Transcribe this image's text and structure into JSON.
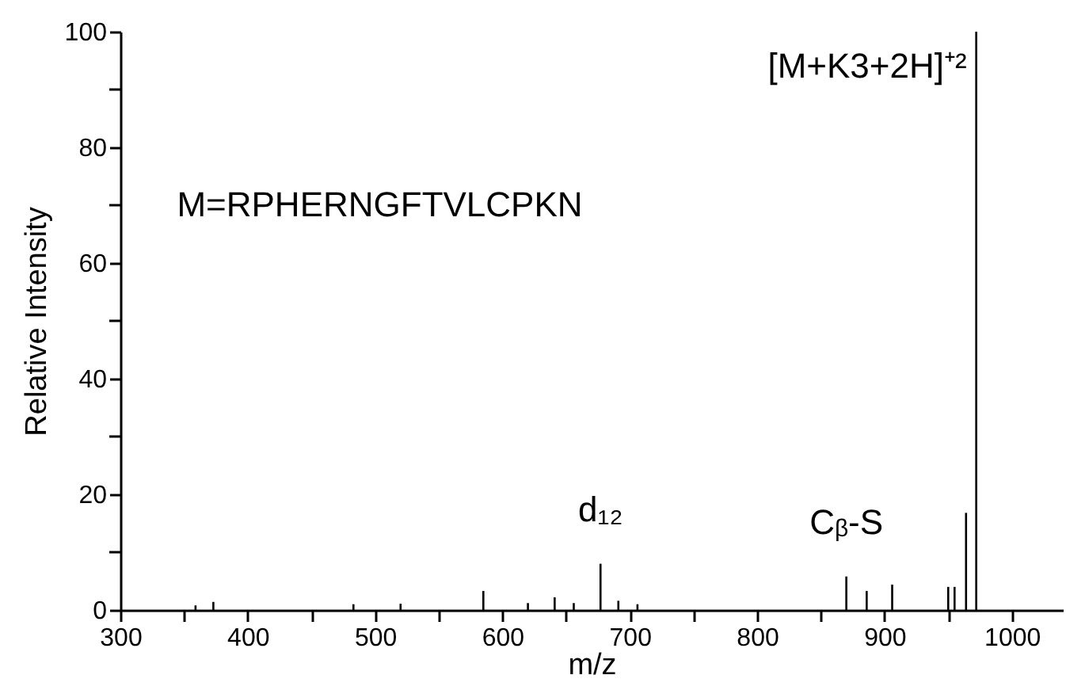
{
  "chart_data": {
    "type": "bar",
    "xlabel": "m/z",
    "ylabel": "Relative Intensity",
    "x": [
      359,
      373,
      483,
      520,
      585,
      620,
      641,
      656,
      677,
      691,
      706,
      870,
      886,
      906,
      950,
      955,
      964,
      972
    ],
    "values": [
      0.8,
      1.4,
      1.0,
      1.1,
      3.3,
      1.2,
      2.2,
      1.2,
      8,
      1.6,
      1.0,
      5.8,
      3.3,
      4.4,
      4,
      4,
      16.8,
      100
    ],
    "color": "#000000",
    "xlim": [
      300,
      1040
    ],
    "xticks": [
      300,
      {
        "value": 350,
        "label": null
      },
      400,
      {
        "value": 450,
        "label": null
      },
      500,
      {
        "value": 550,
        "label": null
      },
      600,
      {
        "value": 650,
        "label": null
      },
      700,
      {
        "value": 750,
        "label": null
      },
      800,
      {
        "value": 850,
        "label": null
      },
      900,
      {
        "value": 950,
        "label": null
      },
      1000
    ],
    "ylim": [
      0,
      100
    ],
    "yticks": [
      0,
      {
        "value": 10,
        "label": null
      },
      20,
      {
        "value": 30,
        "label": null
      },
      40,
      {
        "value": 50,
        "label": null
      },
      60,
      {
        "value": 70,
        "label": null
      },
      80,
      {
        "value": 90,
        "label": null
      },
      100
    ],
    "annotations": [
      "M=RPHERNGFTVLCPKN",
      {
        "text": "d₁₂",
        "x": 677,
        "y": 8
      },
      {
        "text": "Cᵦ-S",
        "x": 870,
        "y": 5.8
      },
      {
        "text": "[M+K3+2H]⁺²",
        "x": 972,
        "y": 100
      }
    ],
    "grid": false
  }
}
